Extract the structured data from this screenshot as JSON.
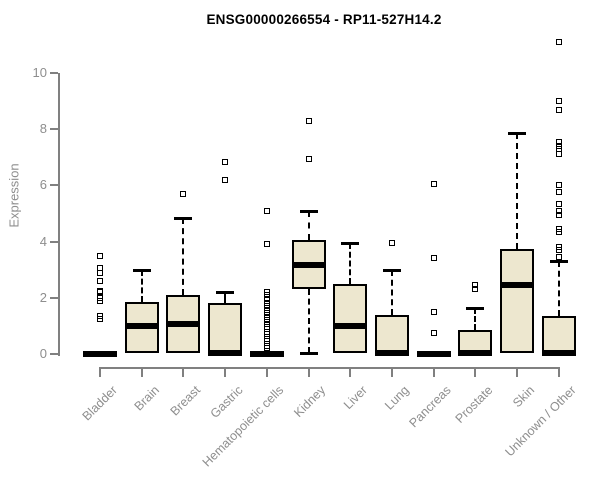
{
  "title": "ENSG00000266554 - RP11-527H14.2",
  "chart_data": {
    "type": "box",
    "title": "ENSG00000266554 - RP11-527H14.2",
    "xlabel": "",
    "ylabel": "Expression",
    "ylim": [
      0,
      10
    ],
    "yticks": [
      0,
      2,
      4,
      6,
      8,
      10
    ],
    "grid": false,
    "legend": "none",
    "marker": "open-square",
    "categories": [
      "Bladder",
      "Brain",
      "Breast",
      "Gastric",
      "Hematopoietic cells",
      "Kidney",
      "Liver",
      "Lung",
      "Pancreas",
      "Prostate",
      "Skin",
      "Unknown / Other"
    ],
    "boxes": [
      {
        "category": "Bladder",
        "q1": 0,
        "median": 0,
        "q3": 0,
        "whisker_low": 0,
        "whisker_high": 0,
        "outliers": [
          1.25,
          1.35,
          1.9,
          2.0,
          2.2,
          2.25,
          2.6,
          2.9,
          3.05,
          3.5
        ]
      },
      {
        "category": "Brain",
        "q1": 0.05,
        "median": 1.0,
        "q3": 1.85,
        "whisker_low": 0.05,
        "whisker_high": 3.0,
        "outliers": []
      },
      {
        "category": "Breast",
        "q1": 0.05,
        "median": 1.05,
        "q3": 2.1,
        "whisker_low": 0.05,
        "whisker_high": 4.85,
        "outliers": [
          5.7
        ]
      },
      {
        "category": "Gastric",
        "q1": 0,
        "median": 0.05,
        "q3": 1.8,
        "whisker_low": 0,
        "whisker_high": 2.2,
        "outliers": [
          6.2,
          6.85
        ]
      },
      {
        "category": "Hematopoietic cells",
        "q1": 0,
        "median": 0,
        "q3": 0,
        "whisker_low": 0,
        "whisker_high": 0,
        "outliers": [
          0.2,
          0.3,
          0.45,
          0.55,
          0.7,
          0.8,
          0.95,
          1.05,
          1.2,
          1.3,
          1.45,
          1.55,
          1.7,
          1.8,
          1.95,
          2.1,
          2.2,
          3.9,
          5.1
        ]
      },
      {
        "category": "Kidney",
        "q1": 2.3,
        "median": 3.15,
        "q3": 4.05,
        "whisker_low": 0.05,
        "whisker_high": 5.1,
        "outliers": [
          6.95,
          8.3
        ]
      },
      {
        "category": "Liver",
        "q1": 0.05,
        "median": 1.0,
        "q3": 2.5,
        "whisker_low": 0.05,
        "whisker_high": 3.95,
        "outliers": []
      },
      {
        "category": "Lung",
        "q1": 0,
        "median": 0.05,
        "q3": 1.4,
        "whisker_low": 0,
        "whisker_high": 3.0,
        "outliers": [
          3.95
        ]
      },
      {
        "category": "Pancreas",
        "q1": 0,
        "median": 0,
        "q3": 0,
        "whisker_low": 0,
        "whisker_high": 0,
        "outliers": [
          0.75,
          1.5,
          3.4,
          6.05
        ]
      },
      {
        "category": "Prostate",
        "q1": 0,
        "median": 0.05,
        "q3": 0.85,
        "whisker_low": 0,
        "whisker_high": 1.65,
        "outliers": [
          2.3,
          2.45
        ]
      },
      {
        "category": "Skin",
        "q1": 0.05,
        "median": 2.45,
        "q3": 3.75,
        "whisker_low": 0.05,
        "whisker_high": 7.85,
        "outliers": []
      },
      {
        "category": "Unknown / Other",
        "q1": 0,
        "median": 0.05,
        "q3": 1.35,
        "whisker_low": 0,
        "whisker_high": 3.3,
        "outliers": [
          3.45,
          3.7,
          3.8,
          4.35,
          4.45,
          4.95,
          5.1,
          5.35,
          5.75,
          6.0,
          7.1,
          7.3,
          7.4,
          7.55,
          8.7,
          9.0,
          11.1
        ]
      }
    ],
    "colors": {
      "box_fill": "#EDE7CF",
      "box_border": "#000000",
      "median": "#000000",
      "outlier": "#000000",
      "axis_line": "#808080",
      "axis_text": "#8E8E8E",
      "title_text": "#000000",
      "background": "#FFFFFF"
    }
  }
}
